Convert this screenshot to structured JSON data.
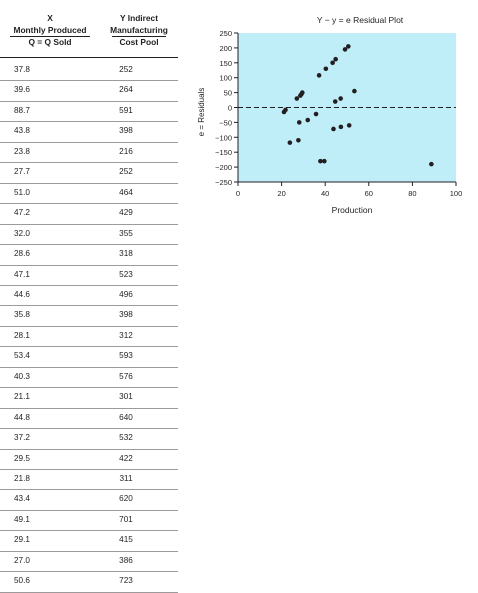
{
  "table": {
    "header": {
      "x_col": [
        "X",
        "Monthly Produced",
        "Q = Q Sold"
      ],
      "y_col": [
        "Y Indirect",
        "Manufacturing",
        "Cost Pool"
      ]
    },
    "rows": [
      [
        "37.8",
        "252"
      ],
      [
        "39.6",
        "264"
      ],
      [
        "88.7",
        "591"
      ],
      [
        "43.8",
        "398"
      ],
      [
        "23.8",
        "216"
      ],
      [
        "27.7",
        "252"
      ],
      [
        "51.0",
        "464"
      ],
      [
        "47.2",
        "429"
      ],
      [
        "32.0",
        "355"
      ],
      [
        "28.6",
        "318"
      ],
      [
        "47.1",
        "523"
      ],
      [
        "44.6",
        "496"
      ],
      [
        "35.8",
        "398"
      ],
      [
        "28.1",
        "312"
      ],
      [
        "53.4",
        "593"
      ],
      [
        "40.3",
        "576"
      ],
      [
        "21.1",
        "301"
      ],
      [
        "44.8",
        "640"
      ],
      [
        "37.2",
        "532"
      ],
      [
        "29.5",
        "422"
      ],
      [
        "21.8",
        "311"
      ],
      [
        "43.4",
        "620"
      ],
      [
        "49.1",
        "701"
      ],
      [
        "29.1",
        "415"
      ],
      [
        "27.0",
        "386"
      ],
      [
        "50.6",
        "723"
      ]
    ]
  },
  "chart_data": {
    "type": "scatter",
    "title": "Y − y = e Residual Plot",
    "xlabel": "Production",
    "ylabel": "e = Residuals",
    "xlim": [
      0,
      100
    ],
    "ylim": [
      -250,
      250
    ],
    "xticks": [
      "0",
      "20",
      "40",
      "60",
      "80",
      "100"
    ],
    "yticks": [
      "250",
      "200",
      "150",
      "100",
      "50",
      "0",
      "−50",
      "−100",
      "−150",
      "−200",
      "−250"
    ],
    "background_color": "#bfeef9",
    "point_color": "#231f20",
    "zero_line": "dashed",
    "points": [
      {
        "x": 21.1,
        "y": -15
      },
      {
        "x": 21.8,
        "y": -8
      },
      {
        "x": 23.8,
        "y": -118
      },
      {
        "x": 27.0,
        "y": 30
      },
      {
        "x": 27.7,
        "y": -110
      },
      {
        "x": 28.1,
        "y": -50
      },
      {
        "x": 28.6,
        "y": 40
      },
      {
        "x": 29.1,
        "y": 45
      },
      {
        "x": 29.5,
        "y": 50
      },
      {
        "x": 32.0,
        "y": -42
      },
      {
        "x": 35.8,
        "y": -22
      },
      {
        "x": 37.2,
        "y": 108
      },
      {
        "x": 37.8,
        "y": -180
      },
      {
        "x": 39.6,
        "y": -180
      },
      {
        "x": 40.3,
        "y": 130
      },
      {
        "x": 43.4,
        "y": 150
      },
      {
        "x": 43.8,
        "y": -72
      },
      {
        "x": 44.6,
        "y": 20
      },
      {
        "x": 44.8,
        "y": 162
      },
      {
        "x": 47.1,
        "y": 30
      },
      {
        "x": 47.2,
        "y": -65
      },
      {
        "x": 49.1,
        "y": 195
      },
      {
        "x": 50.6,
        "y": 205
      },
      {
        "x": 51.0,
        "y": -60
      },
      {
        "x": 53.4,
        "y": 55
      },
      {
        "x": 88.7,
        "y": -190
      }
    ]
  }
}
